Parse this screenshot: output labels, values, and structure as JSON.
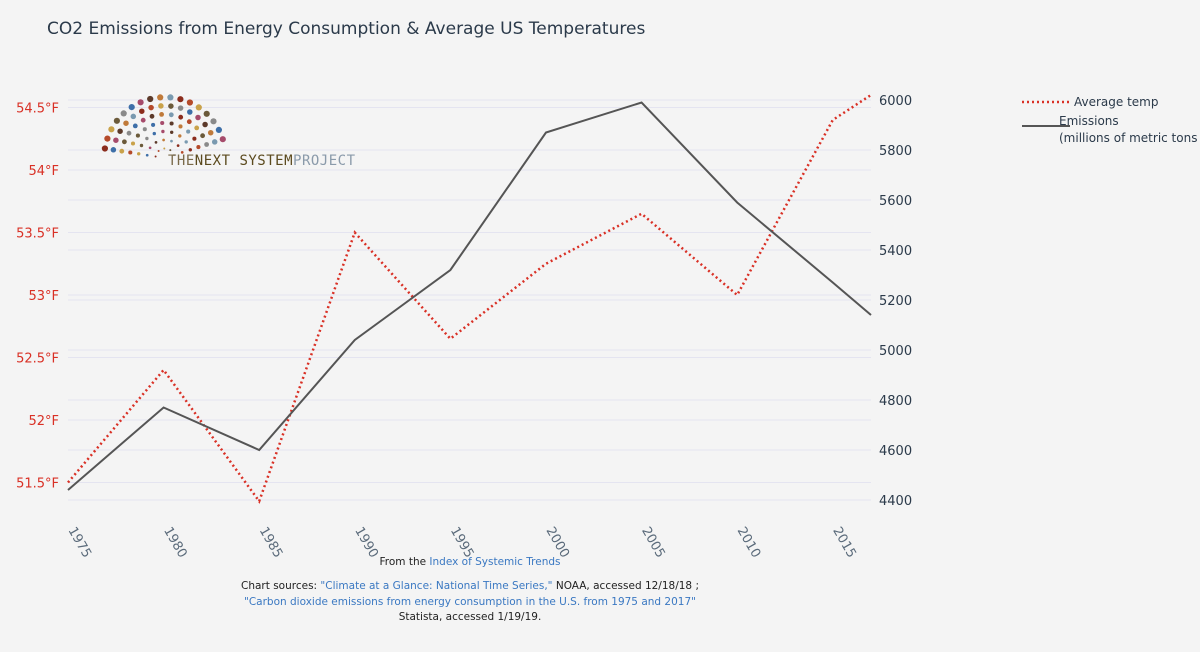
{
  "chart_data": {
    "type": "line",
    "title": "CO2 Emissions from Energy Consumption & Average US Temperatures",
    "x": [
      1975,
      1980,
      1985,
      1990,
      1995,
      2000,
      2005,
      2010,
      2015,
      2017
    ],
    "x_ticks": [
      "1975",
      "1980",
      "1985",
      "1990",
      "1995",
      "2000",
      "2005",
      "2010",
      "2015"
    ],
    "y_left": {
      "ticks": [
        "51.5°F",
        "52°F",
        "52.5°F",
        "53°F",
        "53.5°F",
        "54°F",
        "54.5°F"
      ],
      "tick_values": [
        51.5,
        52,
        52.5,
        53,
        53.5,
        54,
        54.5
      ],
      "range": [
        51.2,
        54.6
      ],
      "color": "#d93025"
    },
    "y_right": {
      "ticks": [
        "4400",
        "4600",
        "4800",
        "5000",
        "5200",
        "5400",
        "5600",
        "5800",
        "6000"
      ],
      "tick_values": [
        4400,
        4600,
        4800,
        5000,
        5200,
        5400,
        5600,
        5800,
        6000
      ],
      "range": [
        4320,
        6020
      ],
      "color": "#2b3a4a"
    },
    "series": [
      {
        "name": "Average temp",
        "axis": "left",
        "style": "dotted",
        "color": "#d93025",
        "values": [
          51.5,
          52.4,
          51.35,
          53.5,
          52.65,
          53.25,
          53.65,
          53.0,
          54.4,
          54.6
        ]
      },
      {
        "name": "Emissions",
        "name_line2": "(millions of metric tons",
        "axis": "right",
        "style": "solid",
        "color": "#555555",
        "values": [
          4440,
          4770,
          4600,
          5040,
          5320,
          5870,
          5990,
          5590,
          5270,
          5140
        ]
      }
    ],
    "grid": true,
    "legend": "top-right"
  },
  "logo": {
    "text_a": "THE",
    "text_b": "NEXT SYSTEM",
    "text_c": "PROJECT"
  },
  "footer": {
    "from_prefix": "From the ",
    "from_link": "Index of Systemic Trends",
    "sources_prefix": "Chart sources: ",
    "source1": "\"Climate at a Glance: National Time Series,\"",
    "source1_suffix": " NOAA, accessed 12/18/18 ;",
    "source2": "\"Carbon dioxide emissions from energy consumption in the U.S. from 1975 and 2017\"",
    "source2_suffix": "Statista, accessed 1/19/19."
  }
}
